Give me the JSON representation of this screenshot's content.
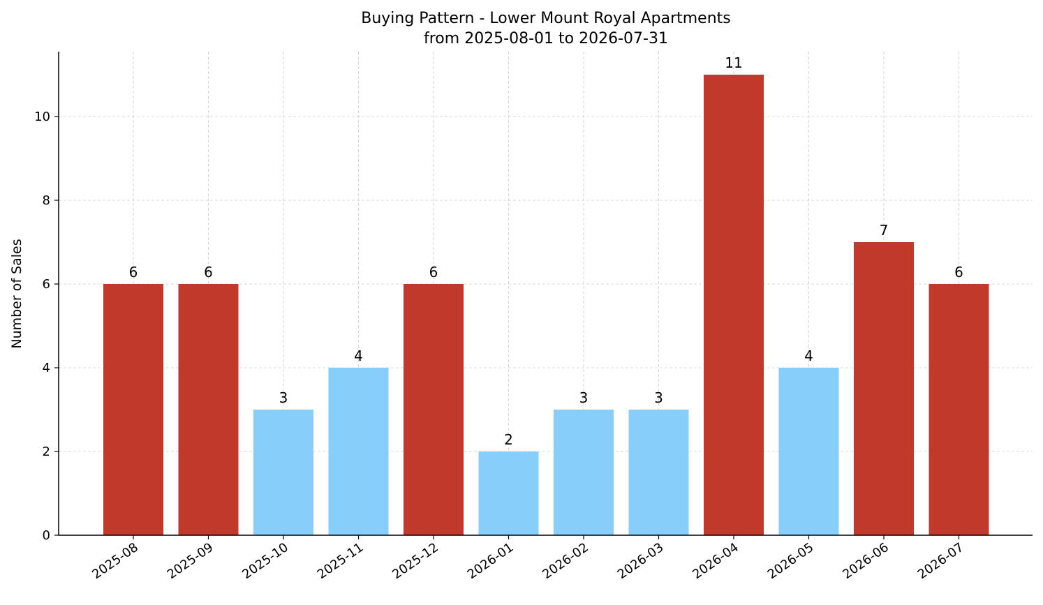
{
  "chart_data": {
    "type": "bar",
    "title": "Buying Pattern - Lower Mount Royal Apartments",
    "subtitle": "from 2025-08-01 to 2026-07-31",
    "xlabel": "",
    "ylabel": "Number of Sales",
    "categories": [
      "2025-08",
      "2025-09",
      "2025-10",
      "2025-11",
      "2025-12",
      "2026-01",
      "2026-02",
      "2026-03",
      "2026-04",
      "2026-05",
      "2026-06",
      "2026-07"
    ],
    "values": [
      6,
      6,
      3,
      4,
      6,
      2,
      3,
      3,
      11,
      4,
      7,
      6
    ],
    "bar_colors": [
      "#c0392b",
      "#c0392b",
      "#87cefa",
      "#87cefa",
      "#c0392b",
      "#87cefa",
      "#87cefa",
      "#87cefa",
      "#c0392b",
      "#87cefa",
      "#c0392b",
      "#c0392b"
    ],
    "ylim": [
      0,
      11.55
    ],
    "yticks": [
      0,
      2,
      4,
      6,
      8,
      10
    ],
    "grid": true,
    "legend": "none"
  }
}
